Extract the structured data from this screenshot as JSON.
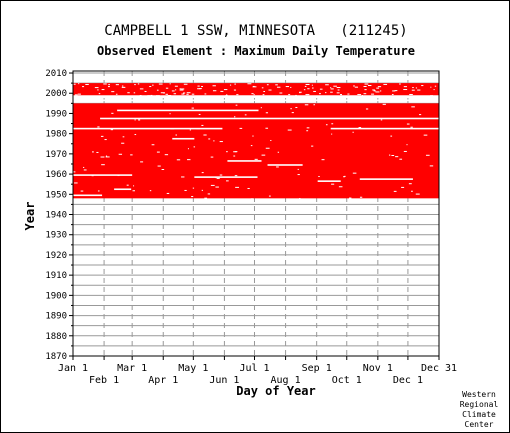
{
  "title": "CAMPBELL 1 SSW, MINNESOTA   (211245)",
  "subtitle": "Observed Element : Maximum Daily Temperature",
  "credit": [
    "Western",
    "Regional",
    "Climate",
    "Center"
  ],
  "chart_data": {
    "type": "heatmap",
    "title": "CAMPBELL 1 SSW, MINNESOTA   (211245)",
    "subtitle": "Observed Element : Maximum Daily Temperature",
    "xlabel": "Day of Year",
    "ylabel": "Year",
    "xlim": [
      1,
      366
    ],
    "ylim": [
      1870,
      2011
    ],
    "yticks": [
      1870,
      1880,
      1890,
      1900,
      1910,
      1920,
      1930,
      1940,
      1950,
      1960,
      1970,
      1980,
      1990,
      2000,
      2010
    ],
    "xticks_top": [
      {
        "label": "Jan 1",
        "day": 1
      },
      {
        "label": "Mar 1",
        "day": 60
      },
      {
        "label": "May 1",
        "day": 121
      },
      {
        "label": "Jul 1",
        "day": 182
      },
      {
        "label": "Sep 1",
        "day": 244
      },
      {
        "label": "Nov 1",
        "day": 305
      },
      {
        "label": "Dec 31",
        "day": 366
      }
    ],
    "xticks_bottom": [
      {
        "label": "Feb 1",
        "day": 32
      },
      {
        "label": "Apr 1",
        "day": 91
      },
      {
        "label": "Jun 1",
        "day": 152
      },
      {
        "label": "Aug 1",
        "day": 213
      },
      {
        "label": "Oct 1",
        "day": 274
      },
      {
        "label": "Dec 1",
        "day": 335
      }
    ],
    "grid": true,
    "data_color": "#ff0000",
    "coverage": [
      {
        "from_year": 1948.0,
        "to_year": 1995.0,
        "from_day": 1,
        "to_day": 366
      },
      {
        "from_year": 1999.0,
        "to_year": 2005.0,
        "from_day": 1,
        "to_day": 366
      }
    ],
    "gaps": [
      {
        "year": 1949.5,
        "from_day": 1,
        "to_day": 30
      },
      {
        "year": 1952.5,
        "from_day": 42,
        "to_day": 59
      },
      {
        "year": 1956.5,
        "from_day": 245,
        "to_day": 268
      },
      {
        "year": 1957.5,
        "from_day": 287,
        "to_day": 340
      },
      {
        "year": 1958.5,
        "from_day": 122,
        "to_day": 185
      },
      {
        "year": 1959.5,
        "from_day": 1,
        "to_day": 60
      },
      {
        "year": 1977.5,
        "from_day": 100,
        "to_day": 122
      },
      {
        "year": 1982.5,
        "from_day": 1,
        "to_day": 150
      },
      {
        "year": 1982.5,
        "from_day": 258,
        "to_day": 366
      },
      {
        "year": 1987.5,
        "from_day": 28,
        "to_day": 366
      },
      {
        "year": 1991.5,
        "from_day": 45,
        "to_day": 186
      },
      {
        "year": 1996.5,
        "from_day": 1,
        "to_day": 366
      },
      {
        "year": 1998.0,
        "from_day": 1,
        "to_day": 366
      },
      {
        "year": 1966.5,
        "from_day": 155,
        "to_day": 189
      },
      {
        "year": 1964.5,
        "from_day": 195,
        "to_day": 230
      }
    ]
  }
}
